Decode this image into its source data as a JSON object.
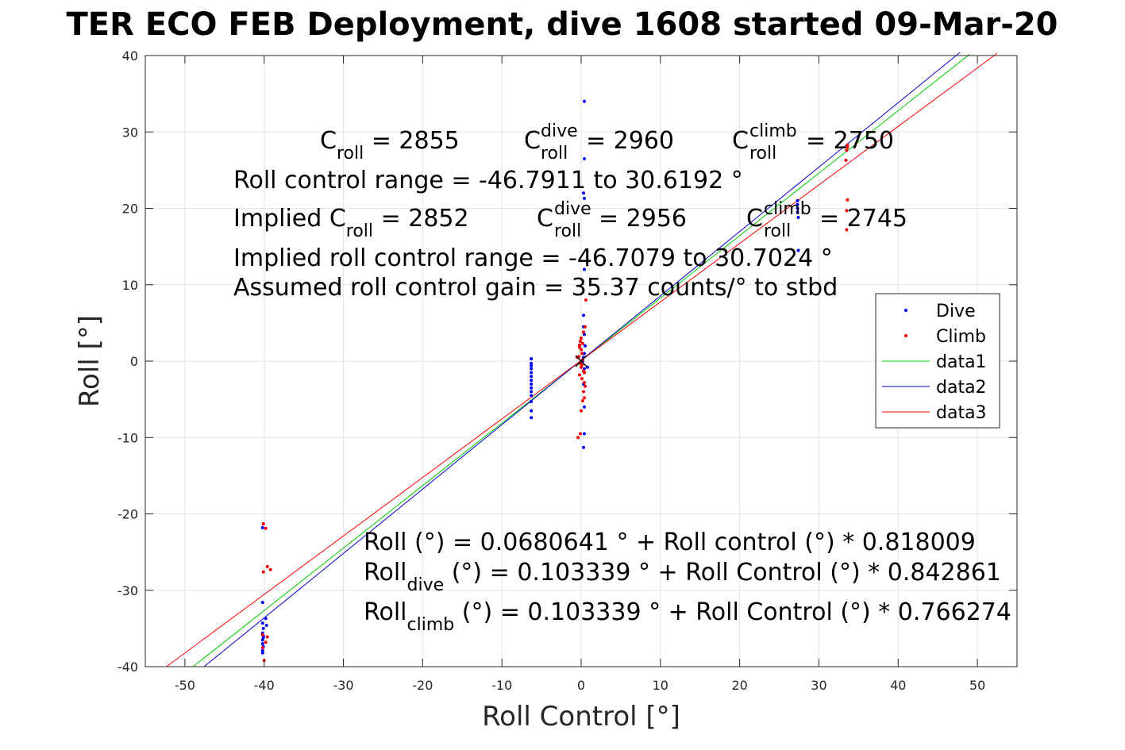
{
  "chart_data": {
    "type": "scatter",
    "title": "TER ECO FEB Deployment, dive 1608 started 09-Mar-20",
    "xlabel": "Roll Control [°]",
    "ylabel": "Roll [°]",
    "xlim": [
      -55,
      55
    ],
    "ylim": [
      -40,
      40
    ],
    "xticks": [
      -50,
      -40,
      -30,
      -20,
      -10,
      0,
      10,
      20,
      30,
      40,
      50
    ],
    "yticks": [
      -40,
      -30,
      -20,
      -10,
      0,
      10,
      20,
      30,
      40
    ],
    "grid": true,
    "legend_placement": "right",
    "colors": {
      "dive": "#0000ff",
      "climb": "#ff0000",
      "data1": "#00cc00",
      "data2": "#0000cc",
      "data3": "#ff0000"
    },
    "series": [
      {
        "name": "Dive",
        "kind": "points",
        "x": [
          -40.2,
          -40.2,
          -40.2,
          -40.1,
          -40.2,
          -40.1,
          -40.2,
          -40.2,
          -40.1,
          -40.2,
          -40.1,
          -39.7,
          -39.8,
          -40.2,
          -6.3,
          -6.3,
          -6.3,
          -6.3,
          -6.3,
          -6.3,
          -6.3,
          -6.3,
          -6.3,
          -6.3,
          -6.3,
          -6.3,
          -6.3,
          -6.3,
          0.4,
          0.4,
          0.3,
          0.4,
          0.4,
          0.3,
          0.3,
          0.4,
          0.5,
          0.4,
          0.3,
          0.2,
          0.4,
          0.3,
          0.4,
          0.8,
          0.4,
          0.3,
          27.3,
          27.3,
          27.3,
          27.4,
          27.4,
          27.3
        ],
        "y": [
          -21.8,
          -31.6,
          -34.3,
          -35.0,
          -35.6,
          -36.0,
          -36.5,
          -37.0,
          -37.4,
          -37.9,
          -36.2,
          -34.6,
          -33.7,
          -38.2,
          0.3,
          -0.6,
          -1.0,
          -1.5,
          -2.0,
          -2.5,
          -3.0,
          -3.5,
          -4.0,
          -4.5,
          -5.3,
          -6.5,
          -7.4,
          -0.3,
          34.0,
          26.5,
          22.0,
          21.3,
          12.0,
          6.0,
          4.5,
          3.5,
          2.0,
          1.0,
          0.5,
          0.0,
          -1.0,
          -3.0,
          -6.0,
          -0.8,
          -9.5,
          -11.3,
          21.0,
          20.0,
          19.5,
          18.8,
          14.5,
          20.5
        ]
      },
      {
        "name": "Climb",
        "kind": "points",
        "x": [
          -40.1,
          -39.8,
          -40.1,
          -39.6,
          -39.2,
          -40.2,
          -39.6,
          -39.8,
          -40.2,
          -40.0,
          -0.1,
          -0.2,
          0.0,
          0.1,
          -0.3,
          0.2,
          -0.1,
          0.0,
          0.3,
          -0.2,
          0.1,
          0.4,
          0.5,
          0.3,
          0.4,
          0.2,
          0.0,
          -0.1,
          -0.4,
          0.6,
          0.5,
          0.3,
          0.0,
          0.2,
          -0.2,
          0.1,
          0.4,
          -0.5,
          33.6,
          33.5,
          33.4,
          33.6,
          33.5,
          33.5,
          33.6
        ],
        "y": [
          -21.3,
          -21.9,
          -27.6,
          -26.9,
          -27.3,
          -35.8,
          -36.1,
          -36.8,
          -37.5,
          -39.2,
          2.6,
          2.1,
          1.5,
          1.0,
          0.6,
          0.2,
          -0.3,
          -0.8,
          -1.3,
          -1.8,
          -2.3,
          -2.8,
          -3.3,
          -4.0,
          -4.8,
          -5.2,
          -6.5,
          -9.5,
          -10.0,
          8.0,
          4.5,
          3.8,
          3.0,
          2.3,
          1.8,
          -0.5,
          -1.5,
          0.5,
          28.0,
          27.6,
          26.3,
          21.1,
          19.7,
          17.2,
          28.3
        ]
      },
      {
        "name": "data1",
        "kind": "line",
        "x": [
          -48.976,
          49.0
        ],
        "y": [
          -40.0,
          40.15
        ]
      },
      {
        "name": "data2",
        "kind": "line",
        "x": [
          -47.58,
          47.8
        ],
        "y": [
          -40.0,
          40.4
        ]
      },
      {
        "name": "data3",
        "kind": "line",
        "x": [
          -52.34,
          52.5
        ],
        "y": [
          -40.0,
          40.3
        ]
      }
    ],
    "legend": [
      "Dive",
      "Climb",
      "data1",
      "data2",
      "data3"
    ],
    "annotations_top": {
      "croll_main": "C",
      "croll_sub": "roll",
      "croll_val": " = 2855",
      "cdive_main": "C",
      "cdive_sup": "dive",
      "cdive_sub": "roll",
      "cdive_val": " = 2960",
      "cclimb_main": "C",
      "cclimb_sup": "climb",
      "cclimb_sub": "roll",
      "cclimb_val": " = 2750",
      "range_line": "Roll control range = -46.7911 to 30.6192 °",
      "implied_prefix": "Implied C",
      "implied_sub": "roll",
      "implied_val": " = 2852",
      "icdive_main": "C",
      "icdive_sup": "dive",
      "icdive_sub": "roll",
      "icdive_val": " = 2956",
      "icclimb_main": "C",
      "icclimb_sup": "climb",
      "icclimb_sub": "roll",
      "icclimb_val": " = 2745",
      "implied_range_line": "Implied roll control range = -46.7079 to 30.7024 °",
      "gain_line": "Assumed roll control gain = 35.37 counts/° to stbd"
    },
    "annotations_bottom": {
      "fit_line": "Roll (°) = 0.0680641 ° + Roll control (°) * 0.818009",
      "dive_main": "Roll",
      "dive_sub": "dive",
      "dive_rest": " (°) = 0.103339 ° + Roll Control (°) * 0.842861",
      "climb_main": "Roll",
      "climb_sub": "climb",
      "climb_rest": " (°) = 0.103339 ° + Roll Control (°) * 0.766274"
    }
  }
}
